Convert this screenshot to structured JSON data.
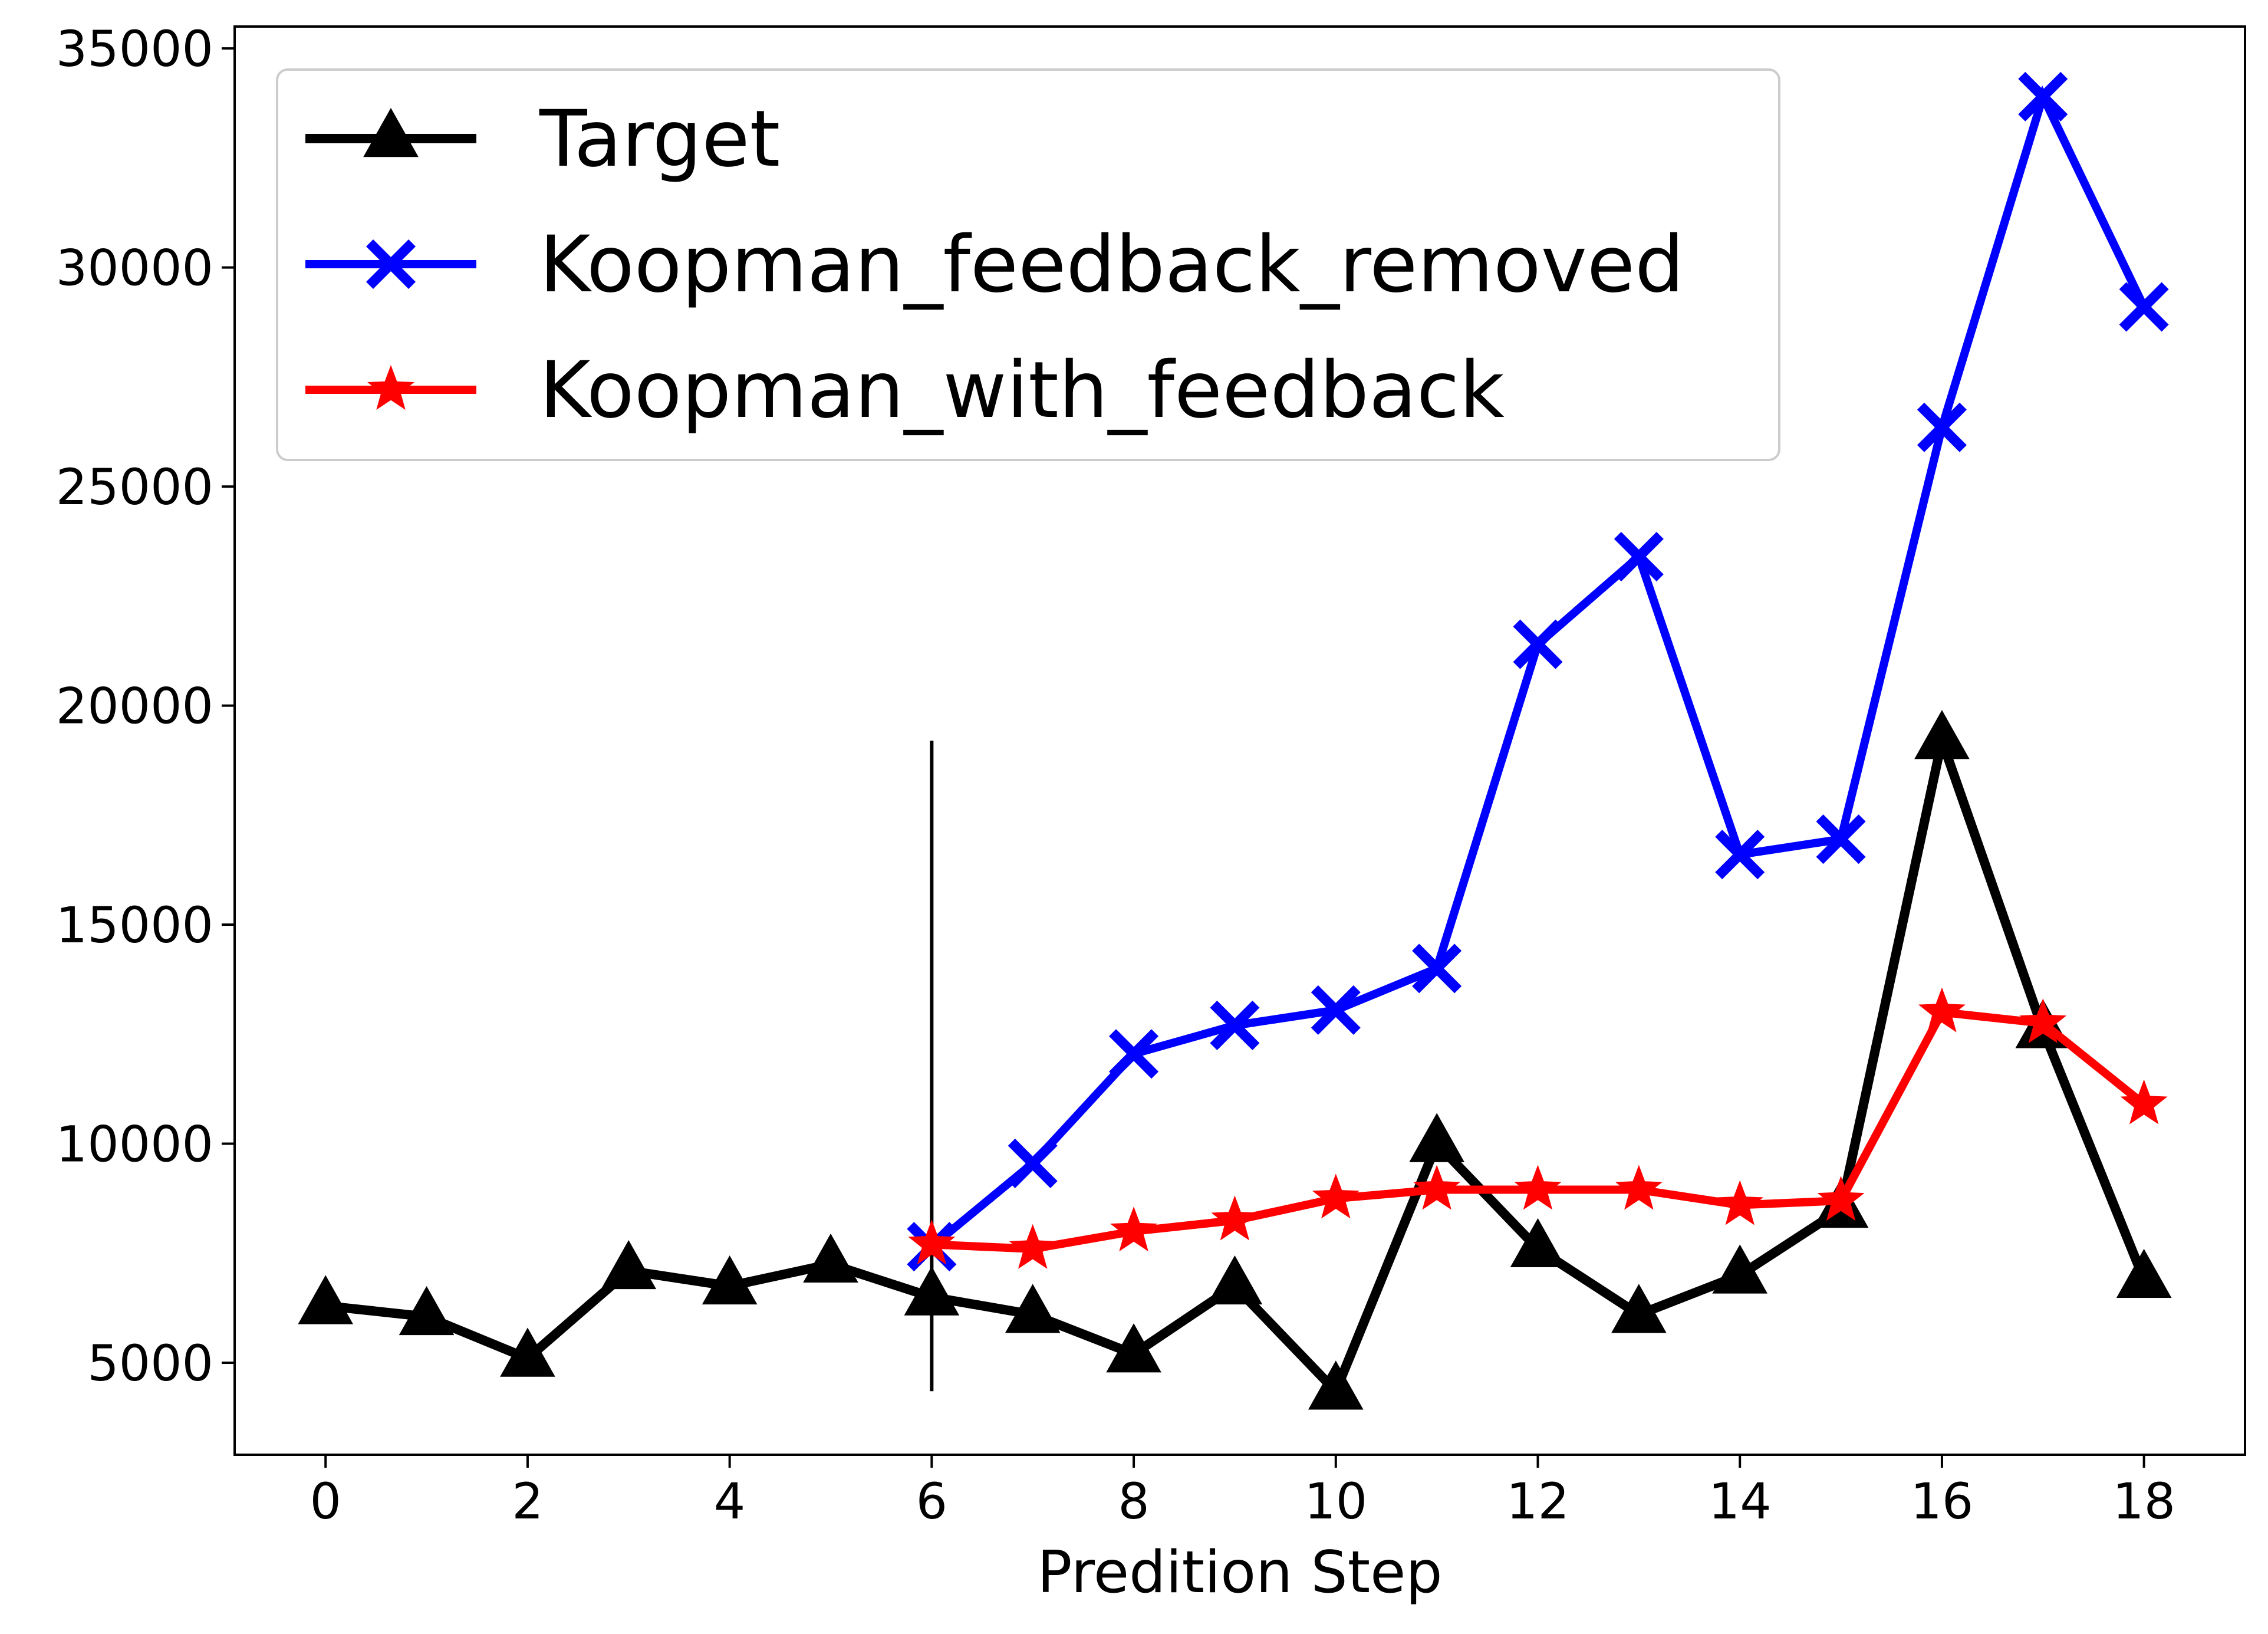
{
  "chart_data": {
    "type": "line",
    "title": "",
    "xlabel": "Predition Step",
    "ylabel": "",
    "xlim": [
      -0.9,
      19.0
    ],
    "ylim": [
      2900,
      35500
    ],
    "xticks": [
      0,
      2,
      4,
      6,
      8,
      10,
      12,
      14,
      16,
      18
    ],
    "xtick_labels": [
      "0",
      "2",
      "4",
      "6",
      "8",
      "10",
      "12",
      "14",
      "16",
      "18"
    ],
    "yticks": [
      5000,
      10000,
      15000,
      20000,
      25000,
      30000,
      35000
    ],
    "ytick_labels": [
      "5000",
      "10000",
      "15000",
      "20000",
      "25000",
      "30000",
      "35000"
    ],
    "grid": false,
    "legend_position": "top-left",
    "series": [
      {
        "name": "Target",
        "color": "#000000",
        "marker": "triangle",
        "x": [
          0,
          1,
          2,
          3,
          4,
          5,
          6,
          7,
          8,
          9,
          10,
          11,
          12,
          13,
          14,
          15,
          16,
          17,
          18
        ],
        "values": [
          6300,
          6050,
          5100,
          7100,
          6750,
          7250,
          6500,
          6100,
          5200,
          6750,
          4350,
          10000,
          7600,
          6100,
          7000,
          8500,
          19200,
          12600,
          6900
        ]
      },
      {
        "name": "Koopman_feedback_removed",
        "color": "#0000ff",
        "marker": "x-filled",
        "x": [
          6,
          7,
          8,
          9,
          10,
          11,
          12,
          13,
          14,
          15,
          16,
          17,
          18
        ],
        "values": [
          7650,
          9550,
          12050,
          12700,
          13050,
          14000,
          21400,
          23400,
          16600,
          16950,
          26350,
          33900,
          29100
        ]
      },
      {
        "name": "Koopman_with_feedback",
        "color": "#ff0000",
        "marker": "star",
        "x": [
          6,
          7,
          8,
          9,
          10,
          11,
          12,
          13,
          14,
          15,
          16,
          17,
          18
        ],
        "values": [
          7700,
          7600,
          8000,
          8250,
          8750,
          8950,
          8950,
          8950,
          8600,
          8700,
          13000,
          12750,
          10900
        ]
      }
    ],
    "annotations": [
      {
        "type": "vertical-line",
        "x": 6,
        "y_range": [
          4350,
          19200
        ],
        "color": "#000000"
      }
    ]
  }
}
